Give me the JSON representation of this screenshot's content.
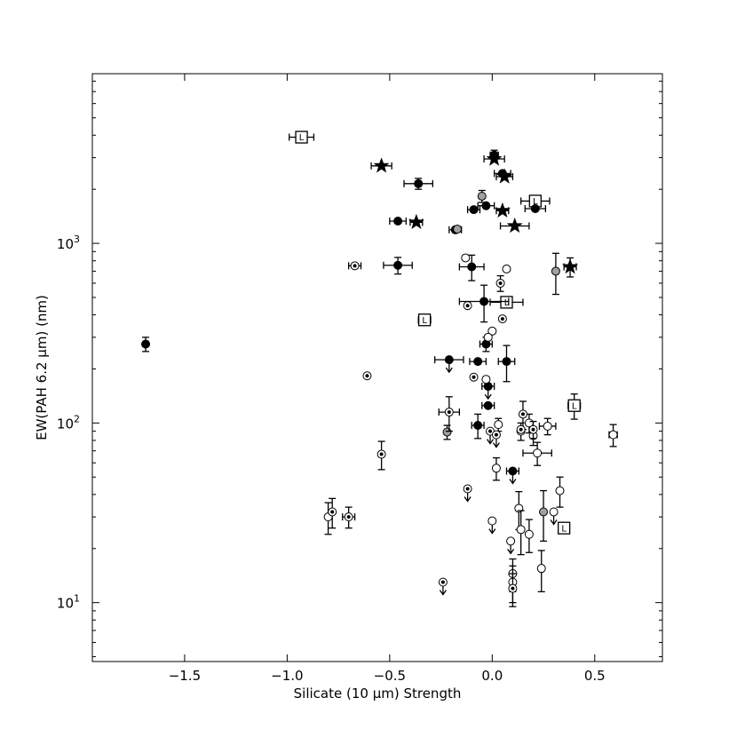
{
  "chart_data": {
    "type": "scatter",
    "xlabel": "Silicate (10 μm) Strength",
    "ylabel": "EW(PAH 6.2 μm) (nm)",
    "xlim": [
      -1.95,
      0.83
    ],
    "ylim": [
      4.7,
      8800
    ],
    "yscale": "log",
    "grid": false,
    "x_ticks": [
      {
        "value": -1.5,
        "label": "−1.5"
      },
      {
        "value": -1.0,
        "label": "−1.0"
      },
      {
        "value": -0.5,
        "label": "−0.5"
      },
      {
        "value": 0.0,
        "label": "0.0"
      },
      {
        "value": 0.5,
        "label": "0.5"
      }
    ],
    "y_ticks": [
      {
        "value": 10,
        "label": "10",
        "exp": "1"
      },
      {
        "value": 100,
        "label": "10",
        "exp": "2"
      },
      {
        "value": 1000,
        "label": "10",
        "exp": "3"
      }
    ],
    "points": [
      {
        "x": -0.93,
        "y": 3900,
        "m": "L",
        "xe": 0.06,
        "ye": 0
      },
      {
        "x": -0.33,
        "y": 375,
        "m": "L",
        "xe": 0.03,
        "ye": 0
      },
      {
        "x": 0.21,
        "y": 1720,
        "m": "L",
        "xe": 0.07,
        "ye": 0
      },
      {
        "x": 0.07,
        "y": 470,
        "m": "L",
        "xe": 0.08,
        "ye": 0
      },
      {
        "x": 0.4,
        "y": 125,
        "m": "L",
        "xe": 0.03,
        "ye": 20
      },
      {
        "x": 0.35,
        "y": 26,
        "m": "L",
        "xe": 0.02,
        "ye": 0
      },
      {
        "x": -0.54,
        "y": 2700,
        "m": "star",
        "xe": 0.05,
        "ye": 0
      },
      {
        "x": -0.37,
        "y": 1310,
        "m": "star",
        "xe": 0.03,
        "ye": 0
      },
      {
        "x": 0.01,
        "y": 2950,
        "m": "star",
        "xe": 0.05,
        "ye": 0
      },
      {
        "x": 0.06,
        "y": 2350,
        "m": "star",
        "xe": 0.04,
        "ye": 0
      },
      {
        "x": 0.05,
        "y": 1520,
        "m": "star",
        "xe": 0.03,
        "ye": 0
      },
      {
        "x": 0.11,
        "y": 1250,
        "m": "star",
        "xe": 0.07,
        "ye": 0
      },
      {
        "x": 0.38,
        "y": 740,
        "m": "star",
        "xe": 0.03,
        "ye": 90
      },
      {
        "x": -1.69,
        "y": 275,
        "m": "filled",
        "xe": 0,
        "ye": 25
      },
      {
        "x": -0.36,
        "y": 2150,
        "m": "filled",
        "xe": 0.07,
        "ye": 150
      },
      {
        "x": -0.46,
        "y": 1330,
        "m": "filled",
        "xe": 0.04,
        "ye": 0
      },
      {
        "x": -0.46,
        "y": 755,
        "m": "filled",
        "xe": 0.07,
        "ye": 80
      },
      {
        "x": -0.18,
        "y": 1190,
        "m": "filled",
        "xe": 0.03,
        "ye": 0
      },
      {
        "x": -0.09,
        "y": 1540,
        "m": "filled",
        "xe": 0.03,
        "ye": 0
      },
      {
        "x": -0.03,
        "y": 1620,
        "m": "filled",
        "xe": 0.04,
        "ye": 0
      },
      {
        "x": 0.01,
        "y": 3100,
        "m": "filled",
        "xe": 0.02,
        "ye": 200
      },
      {
        "x": 0.05,
        "y": 2450,
        "m": "filled",
        "xe": 0.04,
        "ye": 0
      },
      {
        "x": 0.21,
        "y": 1560,
        "m": "filled",
        "xe": 0.05,
        "ye": 0
      },
      {
        "x": -0.1,
        "y": 740,
        "m": "filled",
        "xe": 0.06,
        "ye": 120
      },
      {
        "x": -0.04,
        "y": 475,
        "m": "filled",
        "xe": 0.12,
        "ye": 110
      },
      {
        "x": -0.03,
        "y": 275,
        "m": "filled",
        "xe": 0.03,
        "ye": 25
      },
      {
        "x": -0.21,
        "y": 225,
        "m": "filled",
        "xe": 0.07,
        "ye": 0,
        "upper": true
      },
      {
        "x": -0.07,
        "y": 220,
        "m": "filled",
        "xe": 0.04,
        "ye": 0
      },
      {
        "x": 0.07,
        "y": 220,
        "m": "filled",
        "xe": 0.04,
        "ye": 50
      },
      {
        "x": -0.02,
        "y": 160,
        "m": "filled",
        "xe": 0.03,
        "ye": 0,
        "upper": true
      },
      {
        "x": -0.02,
        "y": 125,
        "m": "filled",
        "xe": 0.03,
        "ye": 0
      },
      {
        "x": -0.07,
        "y": 97,
        "m": "filled",
        "xe": 0.03,
        "ye": 15
      },
      {
        "x": 0.1,
        "y": 54,
        "m": "filled",
        "xe": 0.03,
        "ye": 0,
        "upper": true
      },
      {
        "x": -0.17,
        "y": 1200,
        "m": "gray",
        "xe": 0,
        "ye": 0
      },
      {
        "x": -0.05,
        "y": 1830,
        "m": "gray",
        "xe": 0,
        "ye": 140
      },
      {
        "x": 0.31,
        "y": 700,
        "m": "gray",
        "xe": 0,
        "ye": 180
      },
      {
        "x": -0.22,
        "y": 89,
        "m": "gray",
        "xe": 0,
        "ye": 8
      },
      {
        "x": 0.25,
        "y": 32,
        "m": "gray",
        "xe": 0,
        "ye": 10
      },
      {
        "x": -0.13,
        "y": 830,
        "m": "open",
        "xe": 0,
        "ye": 0
      },
      {
        "x": 0.07,
        "y": 720,
        "m": "open",
        "xe": 0,
        "ye": 0
      },
      {
        "x": 0.0,
        "y": 325,
        "m": "open",
        "xe": 0,
        "ye": 0
      },
      {
        "x": -0.02,
        "y": 300,
        "m": "open",
        "xe": 0,
        "ye": 0
      },
      {
        "x": -0.03,
        "y": 175,
        "m": "open",
        "xe": 0,
        "ye": 0
      },
      {
        "x": 0.03,
        "y": 98,
        "m": "open",
        "xe": 0,
        "ye": 8
      },
      {
        "x": 0.18,
        "y": 100,
        "m": "open",
        "xe": 0,
        "ye": 12
      },
      {
        "x": 0.27,
        "y": 96,
        "m": "open",
        "xe": 0.04,
        "ye": 10
      },
      {
        "x": 0.14,
        "y": 90,
        "m": "open",
        "xe": 0,
        "ye": 10
      },
      {
        "x": 0.2,
        "y": 85,
        "m": "open",
        "xe": 0,
        "ye": 10
      },
      {
        "x": 0.22,
        "y": 68,
        "m": "open",
        "xe": 0.07,
        "ye": 10
      },
      {
        "x": 0.59,
        "y": 86,
        "m": "open",
        "xe": 0.02,
        "ye": 12
      },
      {
        "x": 0.02,
        "y": 56,
        "m": "open",
        "xe": 0,
        "ye": 8
      },
      {
        "x": -0.8,
        "y": 30,
        "m": "open",
        "xe": 0,
        "ye": 6
      },
      {
        "x": 0.0,
        "y": 28.5,
        "m": "open",
        "xe": 0,
        "ye": 0,
        "upper": true
      },
      {
        "x": 0.13,
        "y": 33.5,
        "m": "open",
        "xe": 0,
        "ye": 8
      },
      {
        "x": 0.14,
        "y": 25.5,
        "m": "open",
        "xe": 0,
        "ye": 7
      },
      {
        "x": 0.18,
        "y": 24,
        "m": "open",
        "xe": 0,
        "ye": 5
      },
      {
        "x": 0.33,
        "y": 42,
        "m": "open",
        "xe": 0,
        "ye": 8
      },
      {
        "x": 0.3,
        "y": 32,
        "m": "open",
        "xe": 0,
        "ye": 0,
        "upper": true
      },
      {
        "x": 0.09,
        "y": 22,
        "m": "open",
        "xe": 0,
        "ye": 0,
        "upper": true
      },
      {
        "x": 0.1,
        "y": 14.5,
        "m": "open",
        "xe": 0,
        "ye": 3
      },
      {
        "x": 0.1,
        "y": 13,
        "m": "open",
        "xe": 0,
        "ye": 3
      },
      {
        "x": 0.24,
        "y": 15.5,
        "m": "open",
        "xe": 0,
        "ye": 4
      },
      {
        "x": -0.67,
        "y": 750,
        "m": "dot",
        "xe": 0.03,
        "ye": 0
      },
      {
        "x": -0.61,
        "y": 183,
        "m": "dot",
        "xe": 0,
        "ye": 0
      },
      {
        "x": -0.54,
        "y": 67,
        "m": "dot",
        "xe": 0,
        "ye": 12
      },
      {
        "x": -0.78,
        "y": 32,
        "m": "dot",
        "xe": 0,
        "ye": 6
      },
      {
        "x": -0.7,
        "y": 30,
        "m": "dot",
        "xe": 0.03,
        "ye": 4
      },
      {
        "x": -0.24,
        "y": 13,
        "m": "dot",
        "xe": 0,
        "ye": 0,
        "upper": true
      },
      {
        "x": -0.21,
        "y": 115,
        "m": "dot",
        "xe": 0.05,
        "ye": 25
      },
      {
        "x": -0.12,
        "y": 43,
        "m": "dot",
        "xe": 0,
        "ye": 0,
        "upper": true
      },
      {
        "x": -0.12,
        "y": 450,
        "m": "dot",
        "xe": 0,
        "ye": 0
      },
      {
        "x": -0.09,
        "y": 180,
        "m": "dot",
        "xe": 0,
        "ye": 0
      },
      {
        "x": 0.04,
        "y": 600,
        "m": "dot",
        "xe": 0,
        "ye": 60
      },
      {
        "x": 0.05,
        "y": 380,
        "m": "dot",
        "xe": 0,
        "ye": 0
      },
      {
        "x": 0.15,
        "y": 112,
        "m": "dot",
        "xe": 0,
        "ye": 20
      },
      {
        "x": -0.01,
        "y": 90,
        "m": "dot",
        "xe": 0,
        "ye": 0,
        "upper": true
      },
      {
        "x": 0.02,
        "y": 86,
        "m": "dot",
        "xe": 0,
        "ye": 0,
        "upper": true
      },
      {
        "x": 0.14,
        "y": 92,
        "m": "dot",
        "xe": 0,
        "ye": 0
      },
      {
        "x": 0.2,
        "y": 92,
        "m": "dot",
        "xe": 0,
        "ye": 10
      },
      {
        "x": 0.1,
        "y": 12,
        "m": "dot",
        "xe": 0,
        "ye": 2.5
      }
    ]
  }
}
